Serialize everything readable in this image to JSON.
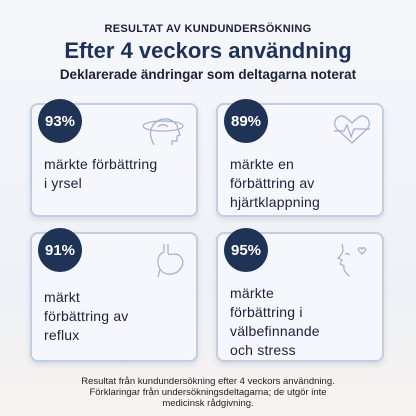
{
  "header": {
    "eyebrow": "RESULTAT AV KUNDUNDERSÖKNING",
    "title": "Efter 4 veckors användning",
    "subtitle": "Deklarerade ändringar som deltagarna noterat"
  },
  "cards": [
    {
      "stat": "93%",
      "lines": [
        "märkte förbättring",
        "i yrsel"
      ]
    },
    {
      "stat": "89%",
      "lines": [
        "märkte en",
        "förbättring av",
        "hjärtklappning"
      ]
    },
    {
      "stat": "91%",
      "lines": [
        "märkt",
        "förbättring av",
        "reflux"
      ]
    },
    {
      "stat": "95%",
      "lines": [
        "märkte",
        "förbättring i",
        "välbefinnande",
        "och stress"
      ]
    }
  ],
  "footer": [
    "Resultat från kundundersökning efter 4 veckors användning.",
    "Förklaringar från undersökningsdeltagarna; de utgör inte",
    "medicinsk rådgivning."
  ]
}
